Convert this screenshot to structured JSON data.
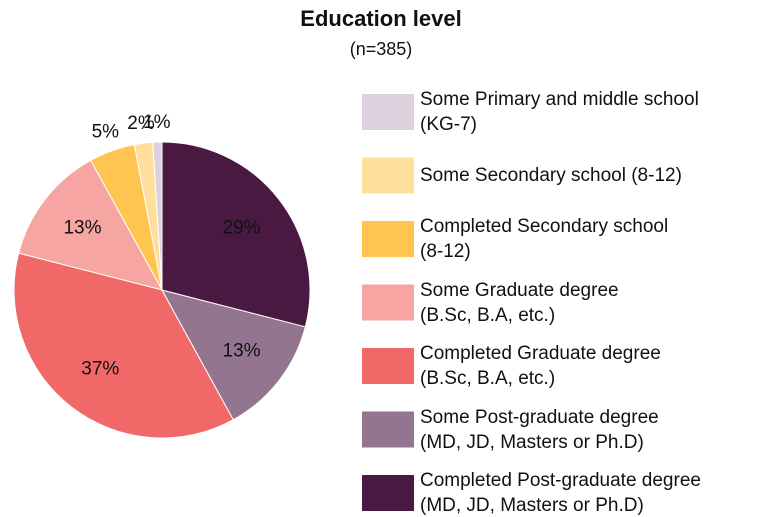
{
  "chart_data": {
    "type": "pie",
    "title": "Education level",
    "subtitle": "(n=385)",
    "categories": [
      "Some Primary and middle school\n(KG-7)",
      "Some Secondary school (8-12)",
      "Completed Secondary school\n(8-12)",
      "Some Graduate degree\n(B.Sc, B.A, etc.)",
      "Completed Graduate degree\n(B.Sc, B.A, etc.)",
      "Some Post-graduate degree\n(MD, JD, Masters or Ph.D)",
      "Completed Post-graduate degree\n(MD, JD, Masters or Ph.D)"
    ],
    "values": [
      1,
      2,
      5,
      13,
      37,
      13,
      29
    ],
    "value_labels": [
      "1%",
      "2%",
      "5%",
      "13%",
      "37%",
      "13%",
      "29%"
    ],
    "colors": [
      "#dcd1dc",
      "#ffdf9b",
      "#ffc550",
      "#f7a5a2",
      "#f06868",
      "#947590",
      "#4a1942"
    ],
    "legend": "right"
  }
}
